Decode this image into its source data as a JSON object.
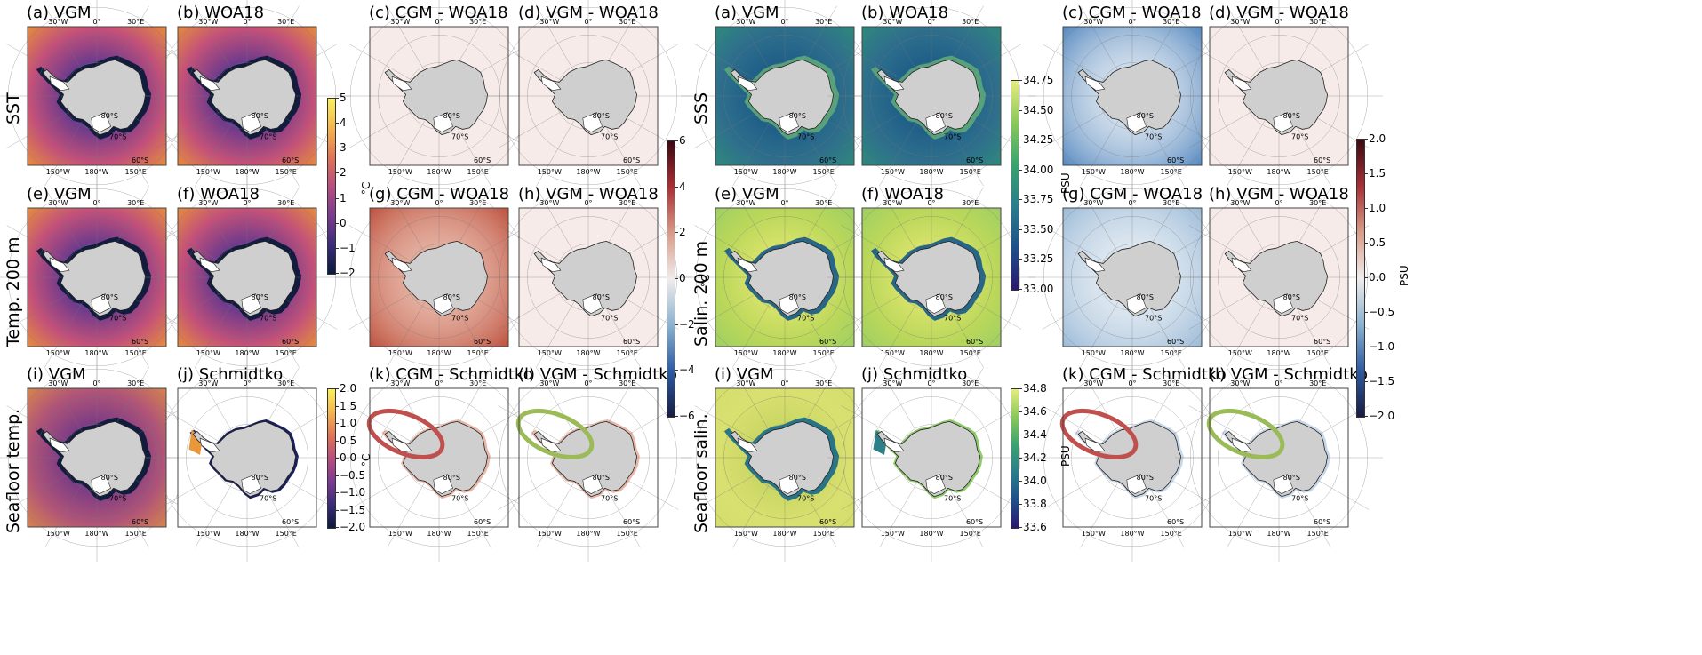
{
  "chart_data": {
    "type": "heatmap",
    "description_free": true,
    "geo_labels": {
      "top": [
        "30°W",
        "0°",
        "30°E"
      ],
      "bottom": [
        "150°W",
        "180°W",
        "150°E"
      ],
      "lat": [
        "80°S",
        "70°S",
        "60°S"
      ]
    },
    "row_labels_left": [
      "SST",
      "Temp. 200 m",
      "Seafloor temp."
    ],
    "row_labels_right": [
      "SSS",
      "Salin. 200 m",
      "Seafloor salin."
    ],
    "panels": [
      {
        "title": "(a) VGM",
        "group": "temp",
        "row": 0,
        "col": 0,
        "kind": "thermal"
      },
      {
        "title": "(b) WOA18",
        "group": "temp",
        "row": 0,
        "col": 1,
        "kind": "thermal"
      },
      {
        "title": "(c) CGM - WOA18",
        "group": "temp",
        "row": 0,
        "col": 2,
        "kind": "bal_light"
      },
      {
        "title": "(d) VGM - WOA18",
        "group": "temp",
        "row": 0,
        "col": 3,
        "kind": "bal_light"
      },
      {
        "title": "(e) VGM",
        "group": "temp",
        "row": 1,
        "col": 0,
        "kind": "thermal"
      },
      {
        "title": "(f) WOA18",
        "group": "temp",
        "row": 1,
        "col": 1,
        "kind": "thermal"
      },
      {
        "title": "(g) CGM - WOA18",
        "group": "temp",
        "row": 1,
        "col": 2,
        "kind": "bal_red"
      },
      {
        "title": "(h) VGM - WOA18",
        "group": "temp",
        "row": 1,
        "col": 3,
        "kind": "bal_light"
      },
      {
        "title": "(i) VGM",
        "group": "temp",
        "row": 2,
        "col": 0,
        "kind": "thermal_sf"
      },
      {
        "title": "(j) Schmidtko",
        "group": "temp",
        "row": 2,
        "col": 1,
        "kind": "thermal_sf_masked"
      },
      {
        "title": "(k) CGM - Schmidtko",
        "group": "temp",
        "row": 2,
        "col": 2,
        "kind": "bal_masked",
        "ellipse": "#c0504d"
      },
      {
        "title": "(l) VGM - Schmidtko",
        "group": "temp",
        "row": 2,
        "col": 3,
        "kind": "bal_masked",
        "ellipse": "#9bbb59"
      },
      {
        "title": "(a) VGM",
        "group": "salt",
        "row": 0,
        "col": 0,
        "kind": "haline"
      },
      {
        "title": "(b) WOA18",
        "group": "salt",
        "row": 0,
        "col": 1,
        "kind": "haline"
      },
      {
        "title": "(c) CGM - WOA18",
        "group": "salt",
        "row": 0,
        "col": 2,
        "kind": "bal_blue"
      },
      {
        "title": "(d) VGM - WOA18",
        "group": "salt",
        "row": 0,
        "col": 3,
        "kind": "bal_light"
      },
      {
        "title": "(e) VGM",
        "group": "salt",
        "row": 1,
        "col": 0,
        "kind": "haline_y"
      },
      {
        "title": "(f) WOA18",
        "group": "salt",
        "row": 1,
        "col": 1,
        "kind": "haline_y"
      },
      {
        "title": "(g) CGM - WOA18",
        "group": "salt",
        "row": 1,
        "col": 2,
        "kind": "bal_blue_light"
      },
      {
        "title": "(h) VGM - WOA18",
        "group": "salt",
        "row": 1,
        "col": 3,
        "kind": "bal_light"
      },
      {
        "title": "(i) VGM",
        "group": "salt",
        "row": 2,
        "col": 0,
        "kind": "haline_sf"
      },
      {
        "title": "(j) Schmidtko",
        "group": "salt",
        "row": 2,
        "col": 1,
        "kind": "haline_sf_masked"
      },
      {
        "title": "(k) CGM - Schmidtko",
        "group": "salt",
        "row": 2,
        "col": 2,
        "kind": "bal_masked_blue",
        "ellipse": "#c0504d"
      },
      {
        "title": "(l) VGM - Schmidtko",
        "group": "salt",
        "row": 2,
        "col": 3,
        "kind": "bal_masked_blue",
        "ellipse": "#9bbb59"
      }
    ],
    "colorbars": [
      {
        "id": "temp_rows12",
        "cmap": "thermal",
        "ticks": [
          "5",
          "4",
          "3",
          "2",
          "1",
          "0",
          "−1",
          "−2"
        ],
        "range": [
          -2,
          5
        ],
        "label": "°C"
      },
      {
        "id": "temp_diff",
        "cmap": "balance",
        "ticks": [
          "6",
          "4",
          "2",
          "0",
          "−2",
          "−4",
          "−6"
        ],
        "range": [
          -6,
          6
        ],
        "label": "°C"
      },
      {
        "id": "temp_sf",
        "cmap": "thermal",
        "ticks": [
          "2.0",
          "1.5",
          "1.0",
          "0.5",
          "0.0",
          "−0.5",
          "−1.0",
          "−1.5",
          "−2.0"
        ],
        "range": [
          -2,
          2
        ],
        "label": "°C"
      },
      {
        "id": "salt_rows12",
        "cmap": "haline",
        "ticks": [
          "34.75",
          "34.50",
          "34.25",
          "34.00",
          "33.75",
          "33.50",
          "33.25",
          "33.00"
        ],
        "range": [
          33,
          34.75
        ],
        "label": "PSU"
      },
      {
        "id": "salt_diff",
        "cmap": "balance",
        "ticks": [
          "2.0",
          "1.5",
          "1.0",
          "0.5",
          "0.0",
          "−0.5",
          "−1.0",
          "−1.5",
          "−2.0"
        ],
        "range": [
          -2,
          2
        ],
        "label": "PSU"
      },
      {
        "id": "salt_sf",
        "cmap": "haline",
        "ticks": [
          "34.8",
          "34.6",
          "34.4",
          "34.2",
          "34.0",
          "33.8",
          "33.6"
        ],
        "range": [
          33.5,
          34.8
        ],
        "label": "PSU"
      }
    ]
  }
}
